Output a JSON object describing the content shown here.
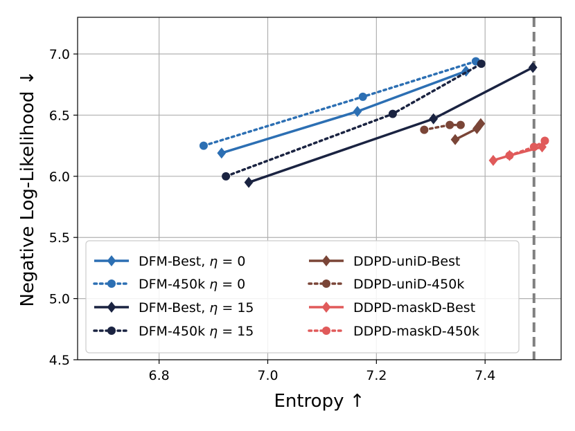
{
  "chart_data": {
    "type": "line",
    "xlabel": "Entropy ↑",
    "ylabel": "Negative Log-Likelihood ↓",
    "xlim": [
      6.65,
      7.54
    ],
    "ylim": [
      4.5,
      7.3
    ],
    "x_ticks": [
      6.8,
      7.0,
      7.2,
      7.4
    ],
    "x_tick_labels": [
      "6.8",
      "7.0",
      "7.2",
      "7.4"
    ],
    "y_ticks": [
      4.5,
      5.0,
      5.5,
      6.0,
      6.5,
      7.0
    ],
    "y_tick_labels": [
      "4.5",
      "5.0",
      "5.5",
      "6.0",
      "6.5",
      "7.0"
    ],
    "grid": true,
    "legend_position": "lower-left",
    "reference_line": {
      "x": 7.49,
      "style": "dashed",
      "color": "#808080"
    },
    "series": [
      {
        "name": "DFM-Best, η = 0",
        "label_main": "DFM-Best, ",
        "label_eta": "η",
        "label_rest": " = 0",
        "color": "#2c6fb3",
        "marker": "diamond",
        "line": "solid",
        "x": [
          6.915,
          7.165,
          7.365
        ],
        "y": [
          6.19,
          6.53,
          6.86
        ]
      },
      {
        "name": "DFM-450k η = 0",
        "label_main": "DFM-450k ",
        "label_eta": "η",
        "label_rest": " = 0",
        "color": "#2c6fb3",
        "marker": "circle",
        "line": "dotted",
        "x": [
          6.882,
          7.175,
          7.383
        ],
        "y": [
          6.25,
          6.65,
          6.94
        ]
      },
      {
        "name": "DFM-Best, η = 15",
        "label_main": "DFM-Best, ",
        "label_eta": "η",
        "label_rest": " = 15",
        "color": "#1a2341",
        "marker": "diamond",
        "line": "solid",
        "x": [
          6.965,
          7.305,
          7.488
        ],
        "y": [
          5.95,
          6.47,
          6.89
        ]
      },
      {
        "name": "DFM-450k η = 15",
        "label_main": "DFM-450k ",
        "label_eta": "η",
        "label_rest": " = 15",
        "color": "#1a2341",
        "marker": "circle",
        "line": "dotted",
        "x": [
          6.923,
          7.23,
          7.393
        ],
        "y": [
          6.0,
          6.51,
          6.92
        ]
      },
      {
        "name": "DDPD-uniD-Best",
        "label_main": "DDPD-uniD-Best",
        "label_eta": "",
        "label_rest": "",
        "color": "#7a4537",
        "marker": "diamond",
        "line": "solid",
        "x": [
          7.345,
          7.385,
          7.392
        ],
        "y": [
          6.3,
          6.39,
          6.43
        ]
      },
      {
        "name": "DDPD-uniD-450k",
        "label_main": "DDPD-uniD-450k",
        "label_eta": "",
        "label_rest": "",
        "color": "#7a4537",
        "marker": "circle",
        "line": "dotted",
        "x": [
          7.288,
          7.335,
          7.355
        ],
        "y": [
          6.38,
          6.42,
          6.42
        ]
      },
      {
        "name": "DDPD-maskD-Best",
        "label_main": "DDPD-maskD-Best",
        "label_eta": "",
        "label_rest": "",
        "color": "#e05a5a",
        "marker": "diamond",
        "line": "solid",
        "x": [
          7.415,
          7.445,
          7.505
        ],
        "y": [
          6.13,
          6.17,
          6.24
        ]
      },
      {
        "name": "DDPD-maskD-450k",
        "label_main": "DDPD-maskD-450k",
        "label_eta": "",
        "label_rest": "",
        "color": "#e05a5a",
        "marker": "circle",
        "line": "dotted",
        "x": [
          7.445,
          7.49,
          7.51
        ],
        "y": [
          6.17,
          6.24,
          6.29
        ]
      }
    ]
  }
}
